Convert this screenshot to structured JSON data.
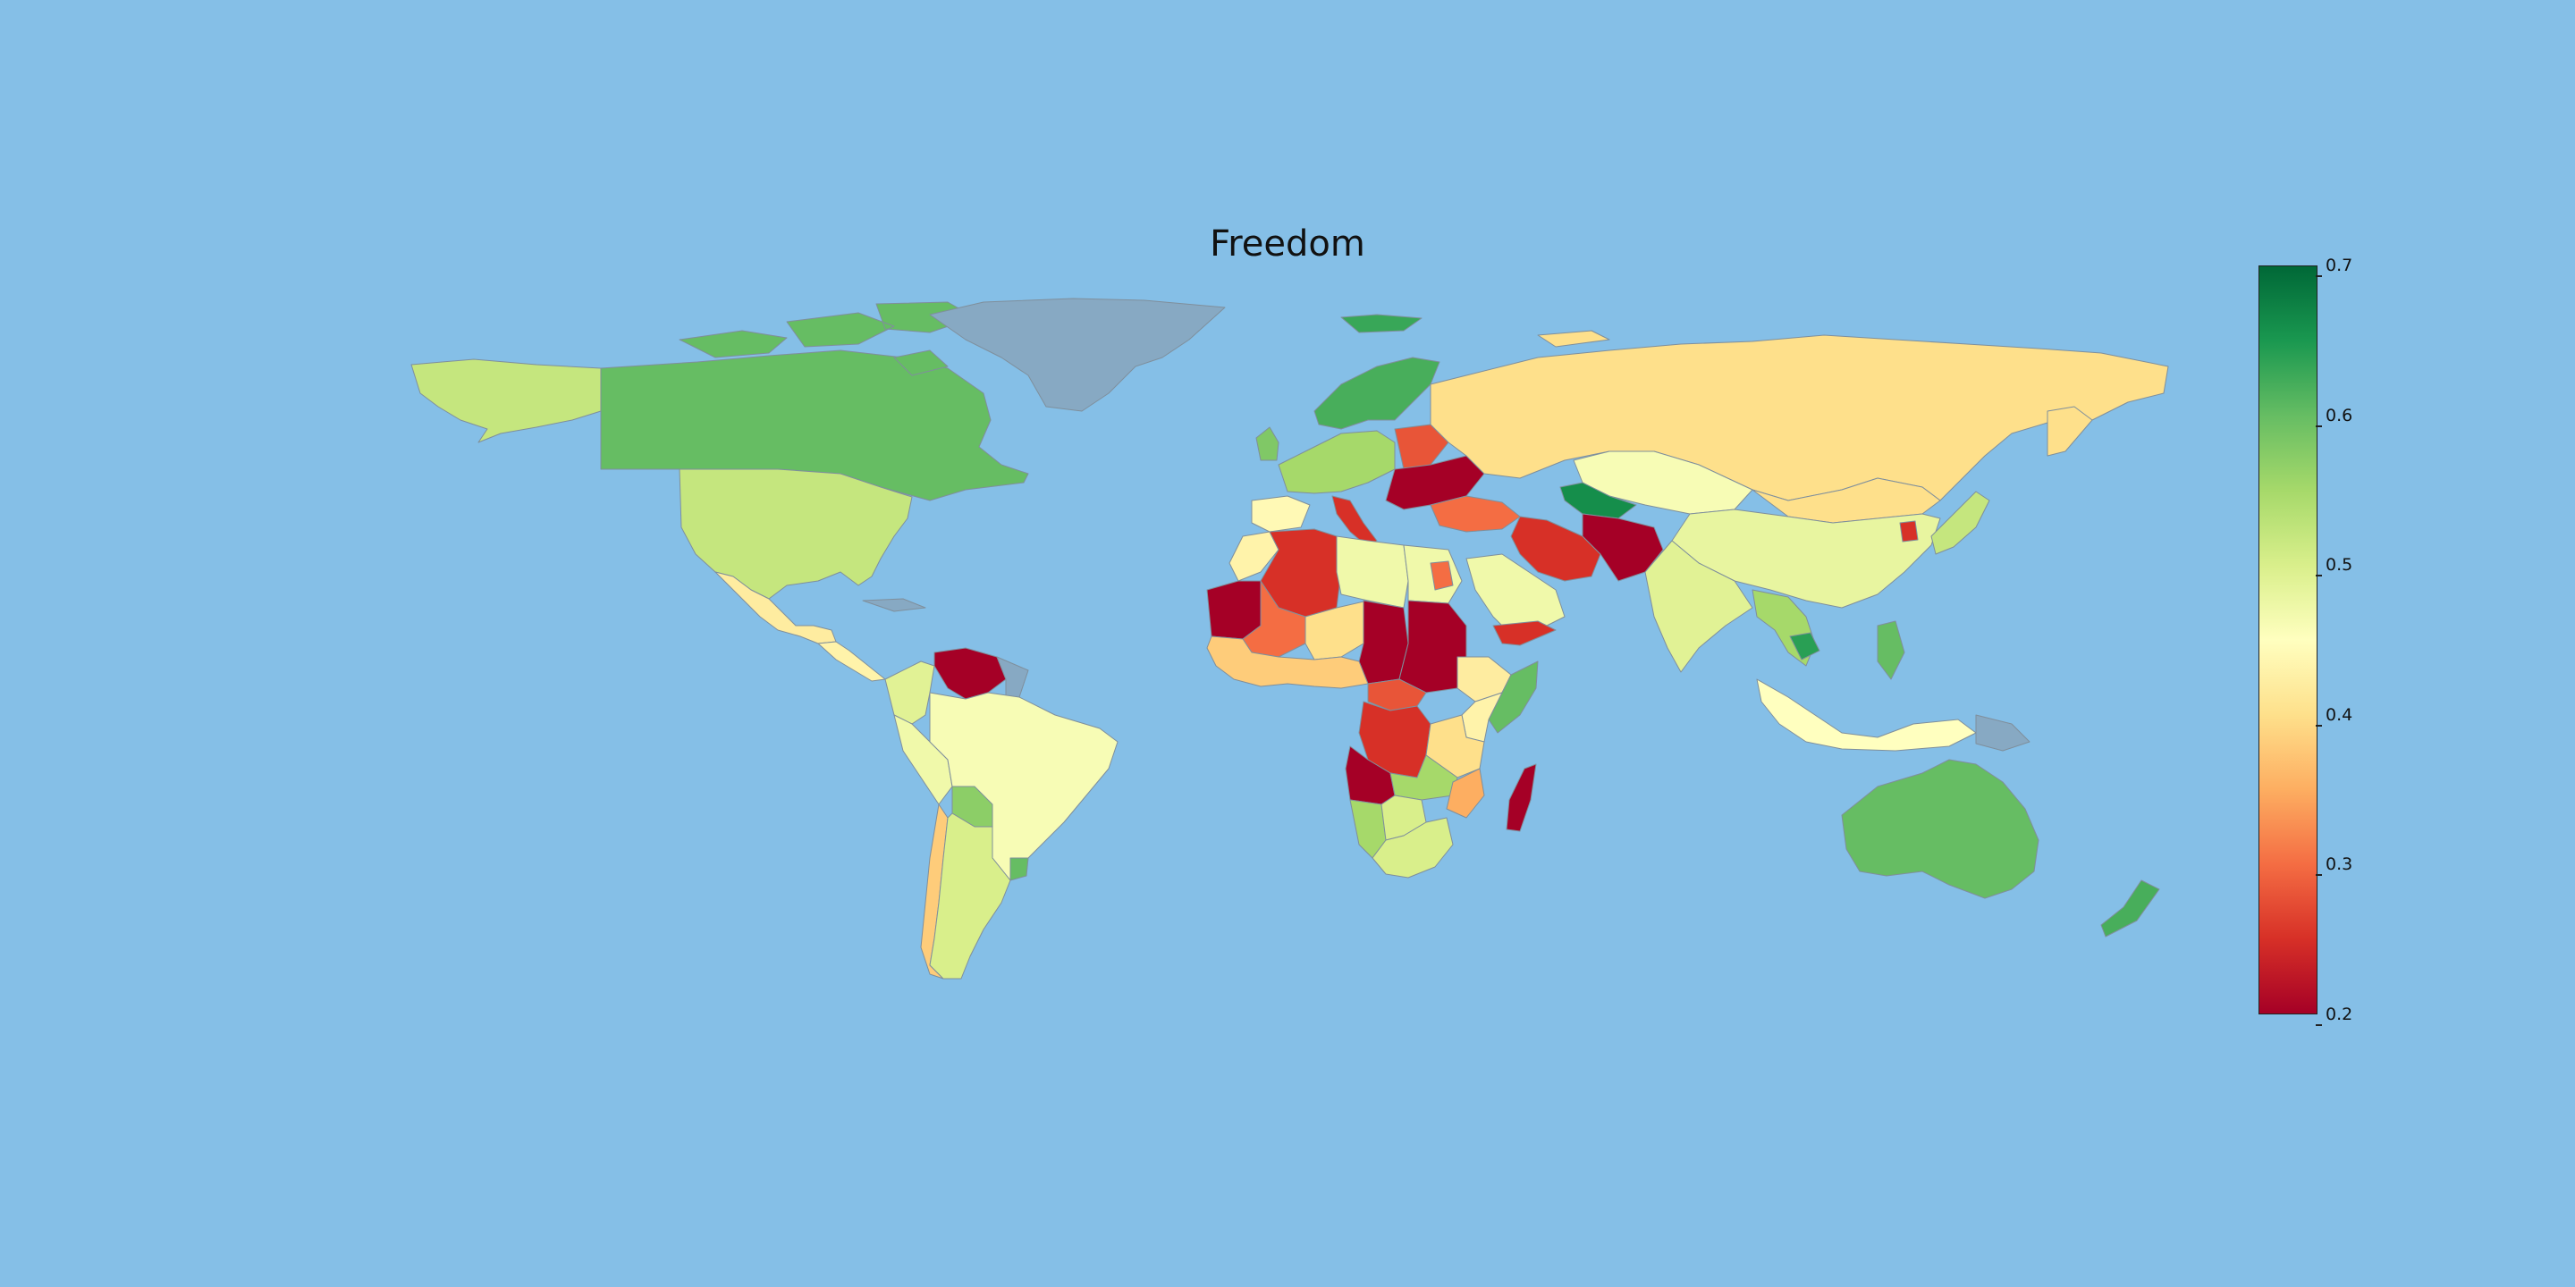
{
  "title": "Freedom",
  "colorbar": {
    "min": 0.2,
    "max": 0.7,
    "ticks": [
      "0.7",
      "0.6",
      "0.5",
      "0.4",
      "0.3",
      "0.2"
    ],
    "colormap": "RdYlGn",
    "colors": [
      "#a50026",
      "#d73027",
      "#f46d43",
      "#fdae61",
      "#fee08b",
      "#ffffbf",
      "#d9ef8b",
      "#a6d96a",
      "#66bd63",
      "#1a9850",
      "#006837"
    ]
  },
  "colors": {
    "ocean": "#85bfe7",
    "no_data": "#87a9c3"
  },
  "chart_data": {
    "type": "choropleth",
    "title": "Freedom",
    "value_range": [
      0.2,
      0.7
    ],
    "regions": [
      {
        "name": "Canada",
        "value": 0.6
      },
      {
        "name": "United States",
        "value": 0.52
      },
      {
        "name": "Alaska",
        "value": 0.52
      },
      {
        "name": "Greenland",
        "value": null
      },
      {
        "name": "Iceland",
        "value": 0.63
      },
      {
        "name": "Mexico",
        "value": 0.42
      },
      {
        "name": "Cuba",
        "value": null
      },
      {
        "name": "Central America",
        "value": 0.43
      },
      {
        "name": "Colombia",
        "value": 0.49
      },
      {
        "name": "Venezuela",
        "value": 0.2
      },
      {
        "name": "Guyana region",
        "value": null
      },
      {
        "name": "Brazil",
        "value": 0.46
      },
      {
        "name": "Peru",
        "value": 0.47
      },
      {
        "name": "Bolivia",
        "value": 0.57
      },
      {
        "name": "Chile",
        "value": 0.38
      },
      {
        "name": "Argentina",
        "value": 0.5
      },
      {
        "name": "Uruguay",
        "value": 0.6
      },
      {
        "name": "Norway/Sweden/Finland",
        "value": 0.62
      },
      {
        "name": "United Kingdom",
        "value": 0.58
      },
      {
        "name": "Western Europe",
        "value": 0.55
      },
      {
        "name": "Spain/Portugal",
        "value": 0.44
      },
      {
        "name": "Italy",
        "value": 0.25
      },
      {
        "name": "Eastern Europe",
        "value": 0.28
      },
      {
        "name": "Ukraine/Balkans",
        "value": 0.2
      },
      {
        "name": "Russia",
        "value": 0.4
      },
      {
        "name": "Kazakhstan",
        "value": 0.46
      },
      {
        "name": "Uzbekistan",
        "value": 0.66
      },
      {
        "name": "Turkey",
        "value": 0.3
      },
      {
        "name": "Iran",
        "value": 0.25
      },
      {
        "name": "Afghanistan",
        "value": 0.2
      },
      {
        "name": "Saudi Arabia",
        "value": 0.47
      },
      {
        "name": "Yemen",
        "value": 0.25
      },
      {
        "name": "Mongolia",
        "value": 0.4
      },
      {
        "name": "China",
        "value": 0.48
      },
      {
        "name": "India",
        "value": 0.49
      },
      {
        "name": "Southeast Asia",
        "value": 0.55
      },
      {
        "name": "Cambodia",
        "value": 0.64
      },
      {
        "name": "Japan",
        "value": 0.52
      },
      {
        "name": "South Korea",
        "value": 0.25
      },
      {
        "name": "Philippines",
        "value": 0.6
      },
      {
        "name": "Indonesia",
        "value": 0.45
      },
      {
        "name": "Papua New Guinea",
        "value": null
      },
      {
        "name": "Australia",
        "value": 0.6
      },
      {
        "name": "New Zealand",
        "value": 0.62
      },
      {
        "name": "Morocco",
        "value": 0.43
      },
      {
        "name": "Algeria",
        "value": 0.25
      },
      {
        "name": "Libya",
        "value": 0.47
      },
      {
        "name": "Egypt",
        "value": 0.47
      },
      {
        "name": "Mauritania",
        "value": 0.2
      },
      {
        "name": "Mali",
        "value": 0.3
      },
      {
        "name": "Niger",
        "value": 0.4
      },
      {
        "name": "Chad",
        "value": 0.2
      },
      {
        "name": "Sudan",
        "value": 0.2
      },
      {
        "name": "Eritrea",
        "value": 0.3
      },
      {
        "name": "Ethiopia",
        "value": 0.42
      },
      {
        "name": "Somalia",
        "value": 0.6
      },
      {
        "name": "Kenya",
        "value": 0.43
      },
      {
        "name": "West Africa",
        "value": 0.38
      },
      {
        "name": "Central African Republic",
        "value": 0.28
      },
      {
        "name": "DR Congo",
        "value": 0.25
      },
      {
        "name": "Angola",
        "value": 0.2
      },
      {
        "name": "Tanzania",
        "value": 0.4
      },
      {
        "name": "Zambia",
        "value": 0.55
      },
      {
        "name": "Mozambique",
        "value": 0.35
      },
      {
        "name": "Namibia",
        "value": 0.55
      },
      {
        "name": "Botswana",
        "value": 0.5
      },
      {
        "name": "South Africa",
        "value": 0.5
      },
      {
        "name": "Madagascar",
        "value": 0.2
      }
    ]
  }
}
